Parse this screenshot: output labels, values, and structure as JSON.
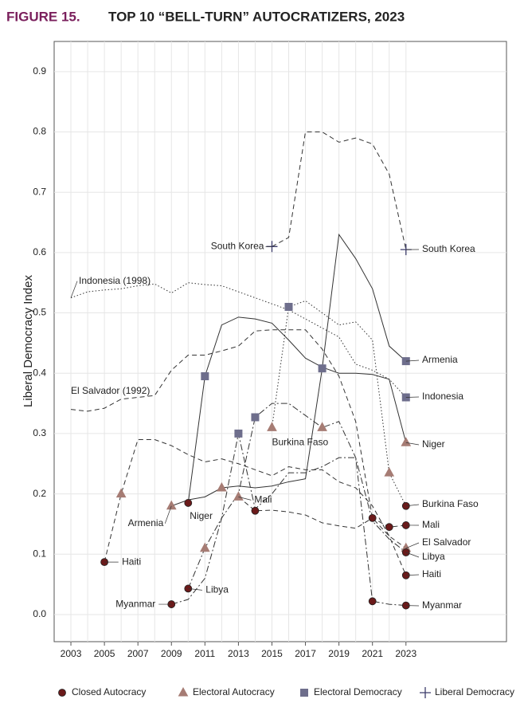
{
  "chart_data": {
    "type": "line",
    "figure_label": "FIGURE 15.",
    "title": "TOP 10 “BELL-TURN” AUTOCRATIZERS, 2023",
    "y_label": "Liberal Democracy Index",
    "x": [
      2003,
      2004,
      2005,
      2006,
      2007,
      2008,
      2009,
      2010,
      2011,
      2012,
      2013,
      2014,
      2015,
      2016,
      2017,
      2018,
      2019,
      2020,
      2021,
      2022,
      2023
    ],
    "xlim": [
      2002,
      2029
    ],
    "xticks": [
      2003,
      2005,
      2007,
      2009,
      2011,
      2013,
      2015,
      2017,
      2019,
      2021,
      2023
    ],
    "ylim": [
      -0.045,
      0.95
    ],
    "yticks": [
      {
        "value": 0,
        "label": "0.0"
      },
      0.1,
      0.2,
      0.3,
      0.4,
      0.5,
      0.6,
      0.7,
      0.8,
      0.9
    ],
    "grid": true,
    "line_color": "#333333",
    "regime_types": [
      {
        "name": "Closed Autocracy",
        "color": "#6b1a1a",
        "shape": "circle"
      },
      {
        "name": "Electoral Autocracy",
        "color": "#a67c74",
        "shape": "triangle"
      },
      {
        "name": "Electoral Democracy",
        "color": "#6e6e8c",
        "shape": "square"
      },
      {
        "name": "Liberal Democracy",
        "color": "#3c3c6a",
        "shape": "cross"
      }
    ],
    "series": [
      {
        "name": "South Korea",
        "line_style": "dashed",
        "values": [
          null,
          null,
          null,
          null,
          null,
          null,
          null,
          null,
          null,
          null,
          null,
          null,
          0.61,
          0.625,
          0.8,
          0.8,
          0.783,
          0.79,
          0.78,
          0.73,
          0.605
        ],
        "regimes": [
          null,
          null,
          null,
          null,
          null,
          null,
          null,
          null,
          null,
          null,
          null,
          null,
          "Liberal Democracy",
          null,
          null,
          null,
          null,
          null,
          null,
          null,
          "Liberal Democracy"
        ]
      },
      {
        "name": "Armenia",
        "line_style": "solid",
        "values": [
          null,
          null,
          null,
          null,
          null,
          null,
          0.18,
          0.19,
          0.195,
          0.21,
          0.213,
          0.21,
          0.213,
          0.22,
          0.225,
          0.408,
          0.63,
          0.59,
          0.54,
          0.445,
          0.42
        ],
        "regimes": [
          null,
          null,
          null,
          null,
          null,
          null,
          "Electoral Autocracy",
          null,
          null,
          "Electoral Autocracy",
          null,
          null,
          null,
          null,
          null,
          "Electoral Democracy",
          null,
          null,
          null,
          null,
          "Electoral Democracy"
        ]
      },
      {
        "name": "Niger",
        "line_style": "solid",
        "values": [
          null,
          null,
          null,
          null,
          null,
          null,
          null,
          0.185,
          0.395,
          0.48,
          0.493,
          0.49,
          0.483,
          0.455,
          0.425,
          0.41,
          0.4,
          0.4,
          0.398,
          0.39,
          0.285
        ],
        "regimes": [
          null,
          null,
          null,
          null,
          null,
          null,
          null,
          "Closed Autocracy",
          "Electoral Democracy",
          null,
          null,
          null,
          null,
          null,
          null,
          null,
          null,
          null,
          null,
          null,
          "Electoral Autocracy"
        ]
      },
      {
        "name": "Indonesia",
        "start_label": "Indonesia (1998)",
        "line_style": "dotted",
        "values": [
          0.525,
          0.535,
          0.538,
          0.54,
          0.545,
          0.548,
          0.533,
          0.55,
          0.547,
          0.545,
          0.535,
          0.525,
          0.515,
          0.505,
          0.49,
          0.475,
          0.46,
          0.415,
          0.405,
          0.39,
          0.36
        ],
        "regimes": [
          null,
          null,
          null,
          null,
          null,
          null,
          null,
          null,
          null,
          null,
          null,
          null,
          null,
          null,
          null,
          null,
          null,
          null,
          null,
          null,
          "Electoral Democracy"
        ]
      },
      {
        "name": "El Salvador",
        "start_label": "El Salvador (1992)",
        "line_style": "dashed",
        "values": [
          0.34,
          0.337,
          0.342,
          0.357,
          0.36,
          0.363,
          0.405,
          0.43,
          0.43,
          0.437,
          0.445,
          0.47,
          0.472,
          0.472,
          0.472,
          0.44,
          0.395,
          0.32,
          0.16,
          0.13,
          0.11
        ],
        "regimes": [
          null,
          null,
          null,
          null,
          null,
          null,
          null,
          null,
          null,
          null,
          null,
          null,
          null,
          null,
          null,
          null,
          null,
          null,
          null,
          null,
          "Electoral Autocracy"
        ]
      },
      {
        "name": "Burkina Faso",
        "line_style": "dotted",
        "values": [
          null,
          null,
          null,
          null,
          null,
          null,
          null,
          null,
          null,
          null,
          null,
          null,
          0.31,
          0.51,
          0.52,
          0.5,
          0.48,
          0.485,
          0.455,
          0.235,
          0.18
        ],
        "regimes": [
          null,
          null,
          null,
          null,
          null,
          null,
          null,
          null,
          null,
          null,
          null,
          null,
          "Electoral Autocracy",
          "Electoral Democracy",
          null,
          null,
          null,
          null,
          null,
          "Electoral Autocracy",
          "Closed Autocracy"
        ]
      },
      {
        "name": "Mali",
        "line_style": "dashed",
        "values": [
          null,
          null,
          null,
          null,
          null,
          null,
          null,
          null,
          null,
          null,
          0.195,
          0.172,
          0.173,
          0.17,
          0.165,
          0.152,
          0.147,
          0.143,
          0.16,
          0.145,
          0.148
        ],
        "regimes": [
          null,
          null,
          null,
          null,
          null,
          null,
          null,
          null,
          null,
          null,
          "Electoral Autocracy",
          "Closed Autocracy",
          null,
          null,
          null,
          null,
          null,
          null,
          "Closed Autocracy",
          "Closed Autocracy",
          "Closed Autocracy"
        ]
      },
      {
        "name": "Haiti",
        "line_style": "dashed",
        "values": [
          null,
          null,
          0.087,
          0.2,
          0.29,
          0.29,
          0.28,
          0.265,
          0.253,
          0.258,
          0.25,
          0.24,
          0.23,
          0.245,
          0.24,
          0.24,
          0.22,
          0.21,
          0.18,
          0.13,
          0.065
        ],
        "regimes": [
          null,
          null,
          "Closed Autocracy",
          "Electoral Autocracy",
          null,
          null,
          null,
          null,
          null,
          null,
          null,
          null,
          null,
          null,
          null,
          null,
          null,
          null,
          null,
          null,
          "Closed Autocracy"
        ]
      },
      {
        "name": "Libya",
        "line_style": "dashdot",
        "values": [
          null,
          null,
          null,
          null,
          null,
          null,
          null,
          0.043,
          0.11,
          0.16,
          0.2,
          0.327,
          0.35,
          0.35,
          0.33,
          0.31,
          0.32,
          0.26,
          0.155,
          0.125,
          0.103
        ],
        "regimes": [
          null,
          null,
          null,
          null,
          null,
          null,
          null,
          "Closed Autocracy",
          "Electoral Autocracy",
          null,
          null,
          "Electoral Democracy",
          null,
          null,
          null,
          "Electoral Autocracy",
          null,
          null,
          null,
          null,
          "Closed Autocracy"
        ]
      },
      {
        "name": "Myanmar",
        "line_style": "dashdot",
        "values": [
          null,
          null,
          null,
          null,
          null,
          null,
          0.017,
          0.025,
          0.06,
          0.16,
          0.3,
          0.175,
          0.2,
          0.235,
          0.235,
          0.245,
          0.26,
          0.26,
          0.022,
          0.017,
          0.015
        ],
        "regimes": [
          null,
          null,
          null,
          null,
          null,
          null,
          "Closed Autocracy",
          null,
          null,
          null,
          "Electoral Democracy",
          null,
          null,
          null,
          null,
          null,
          null,
          null,
          "Closed Autocracy",
          null,
          "Closed Autocracy"
        ]
      }
    ]
  }
}
